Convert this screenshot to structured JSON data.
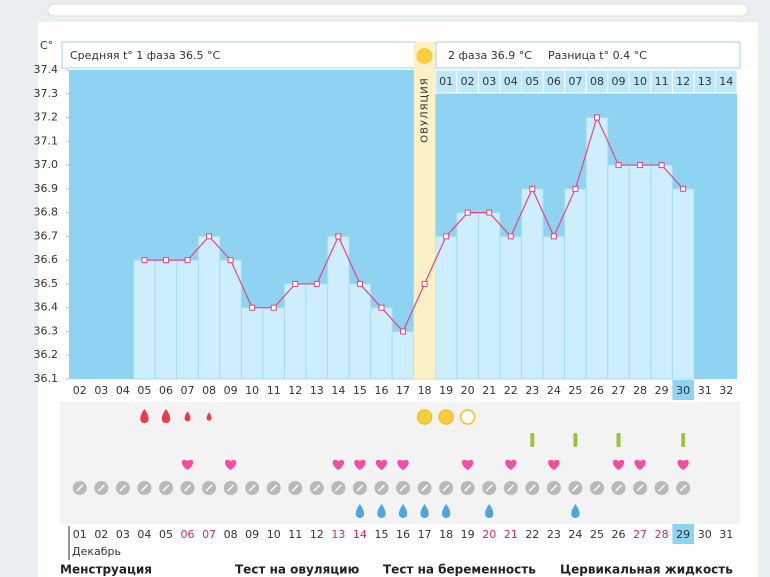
{
  "chart_data": {
    "type": "line",
    "y_label": "C°",
    "header": {
      "phase1": "Средняя t° 1 фаза 36.5 °C",
      "phase2": "2 фаза 36.9 °C",
      "diff": "Разница t° 0.4 °C"
    },
    "ovulation": {
      "label": "ОВУЛЯЦИЯ",
      "day": "18"
    },
    "categories": [
      "02",
      "03",
      "04",
      "05",
      "06",
      "07",
      "08",
      "09",
      "10",
      "11",
      "12",
      "13",
      "14",
      "15",
      "16",
      "17",
      "18",
      "19",
      "20",
      "21",
      "22",
      "23",
      "24",
      "25",
      "26",
      "27",
      "28",
      "29",
      "30",
      "31",
      "32"
    ],
    "phase2_categories": [
      "01",
      "02",
      "03",
      "04",
      "05",
      "06",
      "07",
      "08",
      "09",
      "10",
      "11",
      "12",
      "13",
      "14"
    ],
    "values": [
      null,
      null,
      null,
      36.6,
      36.6,
      36.6,
      36.7,
      36.6,
      36.4,
      36.4,
      36.5,
      36.5,
      36.7,
      36.5,
      36.4,
      36.3,
      36.5,
      36.7,
      36.8,
      36.8,
      36.7,
      36.9,
      36.7,
      36.9,
      37.2,
      37.0,
      37.0,
      37.0,
      36.9,
      null,
      null
    ],
    "color": "#e8457a",
    "bar_color": "#cdeefc",
    "background": "#8ed3f2",
    "ylim": [
      36.1,
      37.4
    ],
    "yticks": [
      36.1,
      36.2,
      36.3,
      36.4,
      36.5,
      36.6,
      36.7,
      36.8,
      36.9,
      {
        "value": 37,
        "label": "37.0"
      },
      37.1,
      37.2,
      37.3,
      37.4
    ],
    "today": "30",
    "dates": [
      "01",
      "02",
      "03",
      "04",
      "05",
      "06",
      "07",
      "08",
      "09",
      "10",
      "11",
      "12",
      "13",
      "14",
      "15",
      "16",
      "17",
      "18",
      "19",
      "20",
      "21",
      "22",
      "23",
      "24",
      "25",
      "26",
      "27",
      "28",
      "29",
      "30",
      "31"
    ],
    "weekend_dates": [
      "06",
      "07",
      "13",
      "14",
      "20",
      "21",
      "27",
      "28"
    ],
    "today_date": "29",
    "month": "Декабрь",
    "icons": {
      "menstruation": [
        "05",
        "06",
        "07",
        "08"
      ],
      "ovulation_test": [
        "18",
        "19",
        "20"
      ],
      "pregnancy_test": [
        "23",
        "25",
        "27",
        "30"
      ],
      "sex": [
        "07",
        "09",
        "14",
        "15",
        "16",
        "17",
        "20",
        "22",
        "24",
        "27",
        "28",
        "30"
      ],
      "cervical": [
        "15",
        "16",
        "17",
        "18",
        "19",
        "21",
        "25"
      ]
    },
    "legend": [
      "Менструация",
      "Тест на овуляцию",
      "Тест на беременность",
      "Цервикальная жидкость"
    ]
  }
}
